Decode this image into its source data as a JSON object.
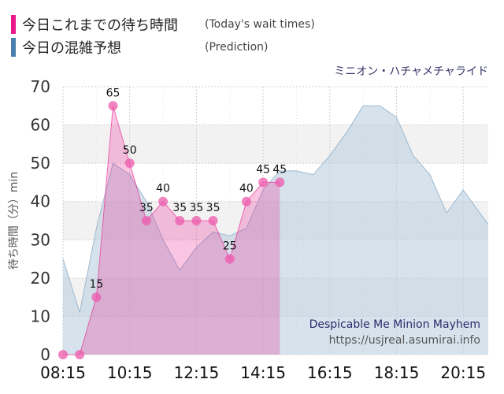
{
  "legend": [
    {
      "label": "今日これまでの待ち時間",
      "sub": "(Today's wait times)",
      "color": "#e8198b"
    },
    {
      "label": "今日の混雑予想",
      "sub": "(Prediction)",
      "color": "#4a7fb0"
    }
  ],
  "attraction_jp": "ミニオン・ハチャメチャライド",
  "attraction_en": "Despicable Me Minion Mayhem",
  "source_url": "https://usjreal.asumirai.info",
  "chart_data": {
    "type": "area",
    "ylabel": "待ち時間（分）min",
    "ylim": [
      0,
      70
    ],
    "y_ticks": [
      "0",
      "10",
      "20",
      "30",
      "40",
      "50",
      "60",
      "70"
    ],
    "x_ticks": [
      "08:15",
      "10:15",
      "12:15",
      "14:15",
      "16:15",
      "18:15",
      "20:15"
    ],
    "x_tick_hours": [
      8.25,
      10.25,
      12.25,
      14.25,
      16.25,
      18.25,
      20.25
    ],
    "xlim": [
      8.25,
      21.0
    ],
    "prediction": {
      "color": "#4a7fb0",
      "x": [
        8.25,
        8.75,
        9.25,
        9.75,
        10.25,
        10.75,
        11.25,
        11.75,
        12.25,
        12.75,
        13.25,
        13.75,
        14.25,
        14.75,
        15.25,
        15.75,
        16.25,
        16.75,
        17.25,
        17.75,
        18.25,
        18.75,
        19.25,
        19.75,
        20.25,
        20.75,
        21.0
      ],
      "values": [
        25,
        11,
        33,
        50,
        47,
        40,
        30,
        22,
        28,
        32,
        31,
        33,
        43,
        48,
        48,
        47,
        52,
        58,
        65,
        65,
        62,
        52,
        47,
        37,
        43,
        37,
        34
      ]
    },
    "today": {
      "color": "#e8198b",
      "x": [
        8.25,
        8.75,
        9.25,
        9.75,
        10.25,
        10.75,
        11.25,
        11.75,
        12.25,
        12.75,
        13.25,
        13.75,
        14.25,
        14.75
      ],
      "values": [
        0,
        0,
        15,
        65,
        50,
        35,
        40,
        35,
        35,
        35,
        25,
        40,
        45,
        45
      ],
      "labels": [
        "",
        "",
        "15",
        "65",
        "50",
        "35",
        "40",
        "35",
        "35",
        "35",
        "25",
        "40",
        "45",
        "45"
      ]
    }
  }
}
